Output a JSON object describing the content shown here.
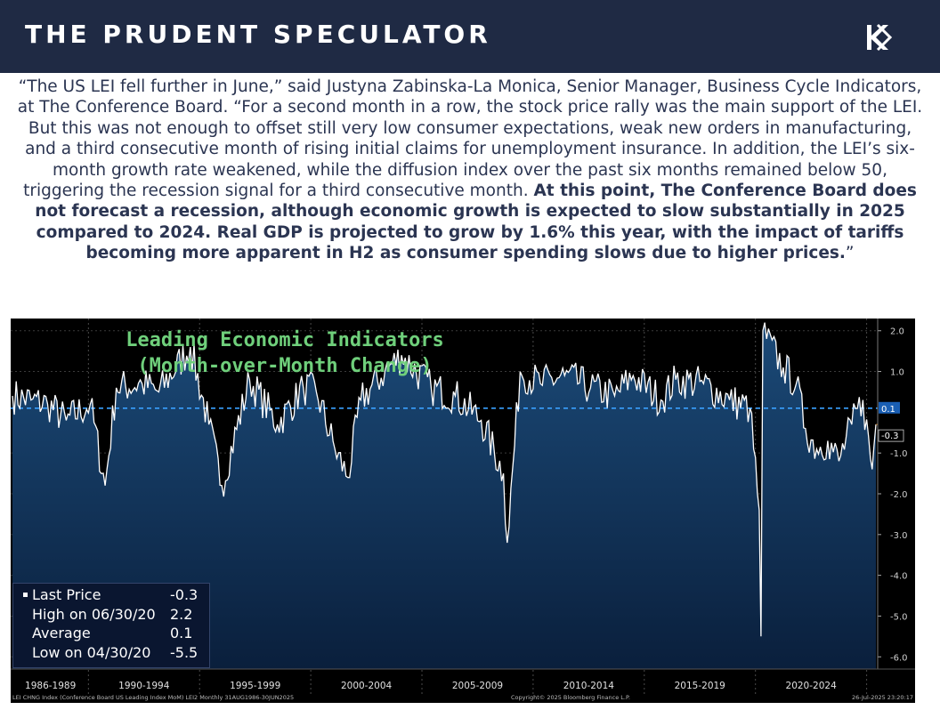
{
  "header": {
    "brand": "THE PRUDENT SPECULATOR",
    "logo_icon": "tps-logo-icon"
  },
  "quote": {
    "normal": "“The US LEI fell further in June,” said Justyna Zabinska-La Monica, Senior Manager, Business Cycle Indicators, at The Conference Board. “For a second month in a row, the stock price rally was the main support of the LEI. But this was not enough to offset still very low consumer expectations, weak new orders in manufacturing, and a third consecutive month of rising initial claims for unemployment insurance. In addition, the LEI’s six-month growth rate weakened, while the diffusion index over the past six months remained below 50, triggering the recession signal for a third consecutive month.",
    "bold": "At this point, The Conference Board does not forecast a recession, although economic growth is expected to slow substantially in 2025 compared to 2024. Real GDP is projected to grow by 1.6% this year, with the impact of tariffs becoming more apparent in H2 as consumer spending slows due to higher prices.",
    "closing": "”"
  },
  "chart_data": {
    "type": "line",
    "title_line1": "Leading Economic Indicators",
    "title_line2": "(Month-over-Month Change)",
    "x_start": "1986-08",
    "x_end": "2025-06",
    "ylim": [
      -6.3,
      2.3
    ],
    "y_ticks": [
      "2.0",
      "1.0",
      "-1.0",
      "-2.0",
      "-3.0",
      "-4.0",
      "-5.0",
      "-6.0"
    ],
    "y_tick_values": [
      2,
      1,
      -1,
      -2,
      -3,
      -4,
      -5,
      -6
    ],
    "x_period_labels": [
      "1986-1989",
      "1990-1994",
      "1995-1999",
      "2000-2004",
      "2005-2009",
      "2010-2014",
      "2015-2019",
      "2020-2024"
    ],
    "average_line": 0.1,
    "average_label": "0.1",
    "last_label": "-0.3",
    "series": [
      {
        "values_sampled": [
          {
            "x": "1986-08",
            "y": 0.4
          },
          {
            "x": "1987-06",
            "y": 0.3
          },
          {
            "x": "1988-03",
            "y": 0.2
          },
          {
            "x": "1989-01",
            "y": -0.2
          },
          {
            "x": "1990-02",
            "y": 0.2
          },
          {
            "x": "1990-10",
            "y": -1.8
          },
          {
            "x": "1991-04",
            "y": 0.6
          },
          {
            "x": "1992-06",
            "y": 0.7
          },
          {
            "x": "1993-03",
            "y": 0.5
          },
          {
            "x": "1994-08",
            "y": 1.6
          },
          {
            "x": "1995-06",
            "y": -0.3
          },
          {
            "x": "1996-01",
            "y": -1.8
          },
          {
            "x": "1997-04",
            "y": 0.8
          },
          {
            "x": "1998-07",
            "y": -0.3
          },
          {
            "x": "1999-09",
            "y": 0.6
          },
          {
            "x": "2000-04",
            "y": 0.5
          },
          {
            "x": "2001-02",
            "y": -0.9
          },
          {
            "x": "2001-09",
            "y": -1.6
          },
          {
            "x": "2002-04",
            "y": 0.3
          },
          {
            "x": "2003-05",
            "y": 1.0
          },
          {
            "x": "2004-02",
            "y": 1.4
          },
          {
            "x": "2005-06",
            "y": 0.6
          },
          {
            "x": "2006-07",
            "y": 0.4
          },
          {
            "x": "2007-09",
            "y": -0.2
          },
          {
            "x": "2008-09",
            "y": -1.5
          },
          {
            "x": "2008-11",
            "y": -3.2
          },
          {
            "x": "2009-06",
            "y": 1.0
          },
          {
            "x": "2010-05",
            "y": 0.7
          },
          {
            "x": "2011-06",
            "y": 0.9
          },
          {
            "x": "2012-08",
            "y": 0.6
          },
          {
            "x": "2013-09",
            "y": 0.4
          },
          {
            "x": "2014-07",
            "y": 0.9
          },
          {
            "x": "2015-10",
            "y": 0.3
          },
          {
            "x": "2016-06",
            "y": 0.8
          },
          {
            "x": "2017-09",
            "y": 0.7
          },
          {
            "x": "2018-11",
            "y": 0.3
          },
          {
            "x": "2019-10",
            "y": 0.1
          },
          {
            "x": "2020-03",
            "y": -2.4
          },
          {
            "x": "2020-04",
            "y": -5.5
          },
          {
            "x": "2020-05",
            "y": 2.0
          },
          {
            "x": "2020-06",
            "y": 2.2
          },
          {
            "x": "2020-07",
            "y": 1.8
          },
          {
            "x": "2021-04",
            "y": 1.1
          },
          {
            "x": "2021-11",
            "y": 0.7
          },
          {
            "x": "2022-04",
            "y": -0.4
          },
          {
            "x": "2022-10",
            "y": -0.9
          },
          {
            "x": "2023-04",
            "y": -0.7
          },
          {
            "x": "2023-10",
            "y": -1.2
          },
          {
            "x": "2024-05",
            "y": -0.3
          },
          {
            "x": "2024-11",
            "y": 0.3
          },
          {
            "x": "2025-04",
            "y": -1.4
          },
          {
            "x": "2025-06",
            "y": -0.3
          }
        ]
      }
    ],
    "stats": [
      {
        "label": "Last Price",
        "value": "-0.3"
      },
      {
        "label": "High on 06/30/20",
        "value": "2.2"
      },
      {
        "label": "Average",
        "value": "0.1"
      },
      {
        "label": "Low on 04/30/20",
        "value": "-5.5"
      }
    ],
    "footer_left": "LEI CHNG Index (Conference Board US Leading Index MoM) LEI2  Monthly 31AUG1986-30JUN2025",
    "footer_center": "Copyright© 2025 Bloomberg Finance L.P.",
    "footer_right": "26-Jul-2025 23:20:17",
    "colors": {
      "line": "#ffffff",
      "area_top": "#1b4a78",
      "area_bottom": "#0a1f3c",
      "average_line": "#3aa0ff",
      "title": "#6fcf7b",
      "header_bg": "#1f2a44"
    }
  }
}
